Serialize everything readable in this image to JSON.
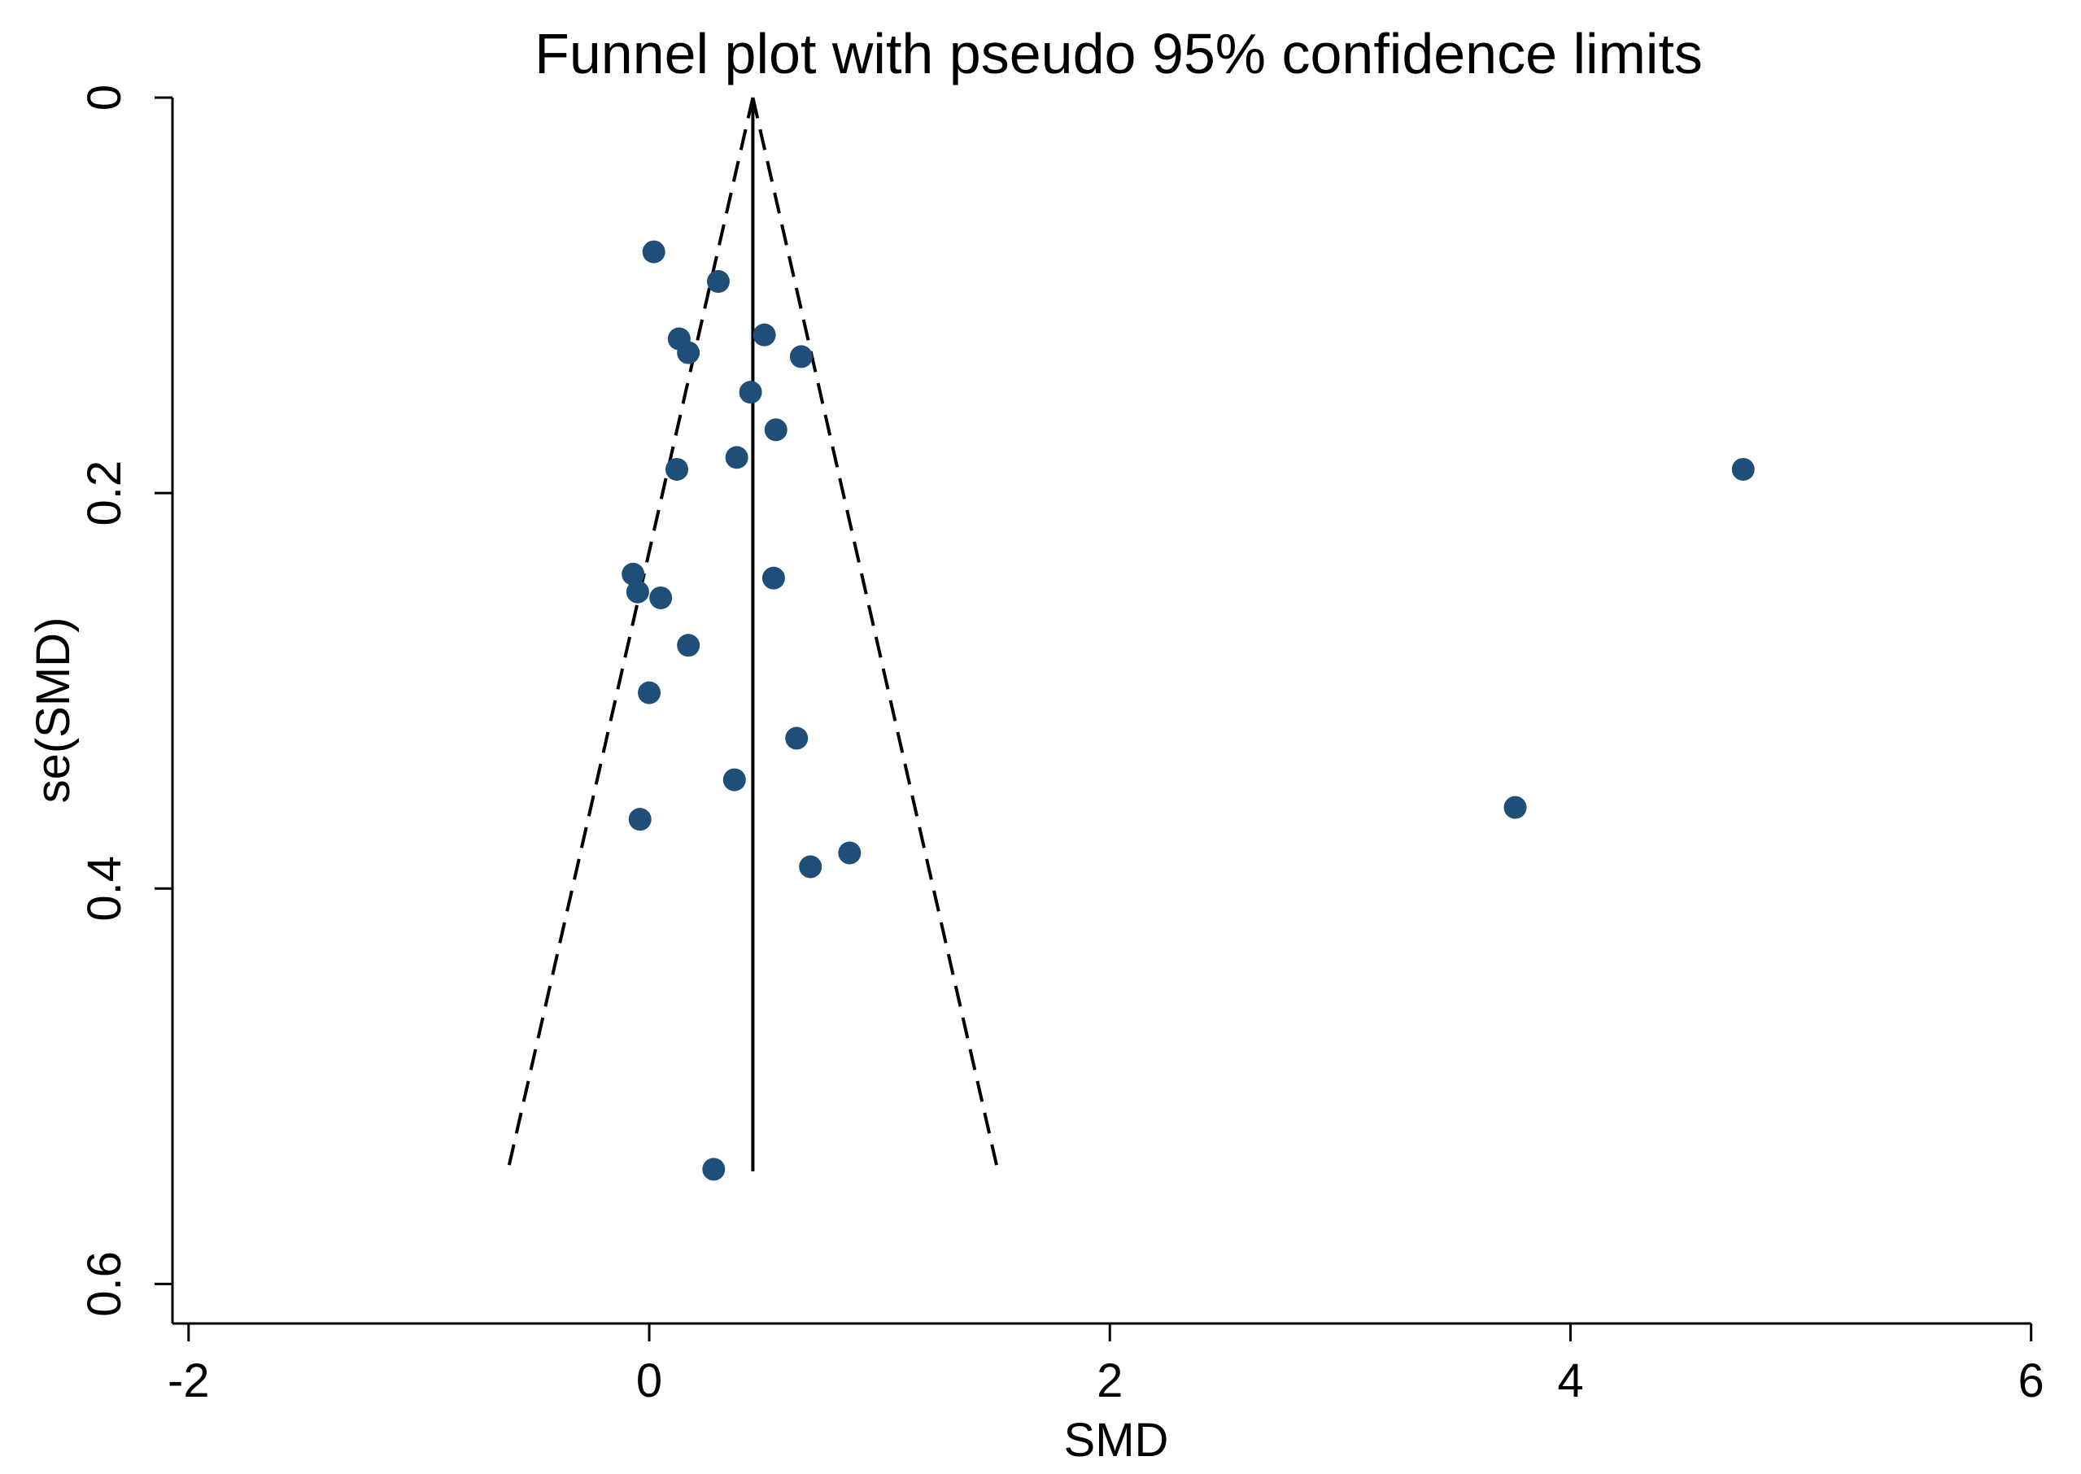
{
  "chart_data": {
    "type": "scatter",
    "title": "Funnel plot with pseudo 95% confidence limits",
    "xlabel": "SMD",
    "ylabel": "se(SMD)",
    "xlim": [
      -2.07,
      6.04
    ],
    "ylim": [
      0,
      0.62
    ],
    "y_reversed": true,
    "x_ticks": [
      -2,
      0,
      2,
      4,
      6
    ],
    "x_tick_labels": [
      "-2",
      "0",
      "2",
      "4",
      "6"
    ],
    "y_ticks": [
      0,
      0.2,
      0.4,
      0.6
    ],
    "y_tick_labels": [
      "0",
      "0.2",
      "0.4",
      "0.6"
    ],
    "grid": false,
    "pooled_estimate": 0.45,
    "se_max": 0.543,
    "ci_multiplier": 1.96,
    "marker_color": "#1f4e79",
    "points": [
      {
        "x": 0.02,
        "y": 0.078
      },
      {
        "x": 0.3,
        "y": 0.093
      },
      {
        "x": 0.13,
        "y": 0.122
      },
      {
        "x": 0.17,
        "y": 0.129
      },
      {
        "x": 0.5,
        "y": 0.12
      },
      {
        "x": 0.66,
        "y": 0.131
      },
      {
        "x": 0.44,
        "y": 0.149
      },
      {
        "x": 0.55,
        "y": 0.168
      },
      {
        "x": 0.38,
        "y": 0.182
      },
      {
        "x": 0.12,
        "y": 0.188
      },
      {
        "x": 4.75,
        "y": 0.188
      },
      {
        "x": -0.07,
        "y": 0.241
      },
      {
        "x": -0.05,
        "y": 0.25
      },
      {
        "x": 0.05,
        "y": 0.253
      },
      {
        "x": 0.54,
        "y": 0.243
      },
      {
        "x": 0.17,
        "y": 0.277
      },
      {
        "x": 0.0,
        "y": 0.301
      },
      {
        "x": 0.64,
        "y": 0.324
      },
      {
        "x": 0.37,
        "y": 0.345
      },
      {
        "x": -0.04,
        "y": 0.365
      },
      {
        "x": 3.76,
        "y": 0.359
      },
      {
        "x": 0.87,
        "y": 0.382
      },
      {
        "x": 0.7,
        "y": 0.389
      },
      {
        "x": 0.28,
        "y": 0.542
      }
    ]
  }
}
